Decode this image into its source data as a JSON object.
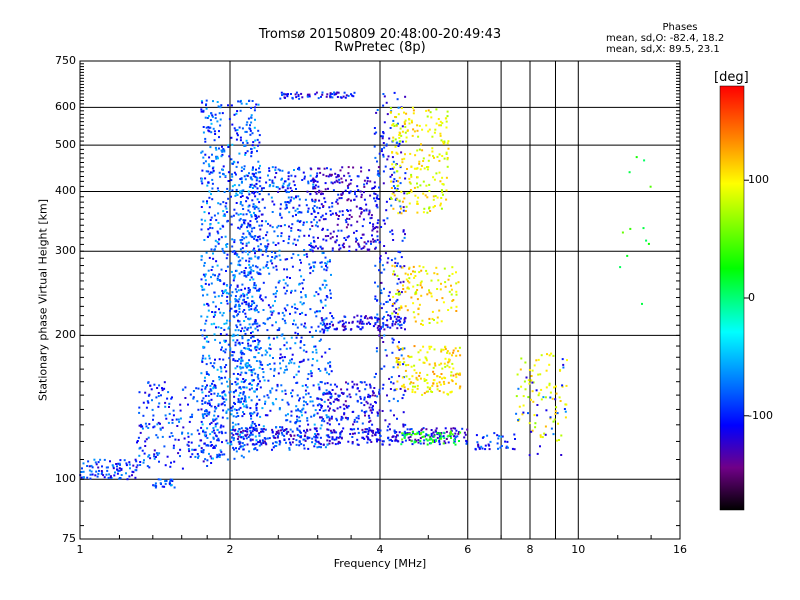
{
  "title_line1": "Tromsø 20150809 20:48:00-20:49:43",
  "title_line2": "RwPretec (8p)",
  "stats": {
    "heading": "Phases",
    "o_line": "mean, sd,O: -82.4, 18.2",
    "x_line": "mean, sd,X: 89.5, 23.1"
  },
  "chart_data": {
    "type": "scatter",
    "xlabel": "Frequency [MHz]",
    "ylabel": "Stationary phase Virtual Height [km]",
    "x_scale": "log",
    "y_scale": "log",
    "xlim": [
      1,
      16
    ],
    "ylim": [
      75,
      750
    ],
    "x_ticks": [
      1,
      2,
      4,
      6,
      8,
      10,
      16
    ],
    "x_tick_labels": [
      "1",
      "2",
      "4",
      "6",
      "8",
      "10",
      "16"
    ],
    "y_ticks": [
      75,
      100,
      200,
      300,
      400,
      500,
      600,
      750
    ],
    "y_tick_labels": [
      "75",
      "100",
      "200",
      "300",
      "400",
      "500",
      "600",
      "750"
    ],
    "grid": true,
    "colorbar": {
      "label": "[deg]",
      "range": [
        -180,
        180
      ],
      "ticks": [
        -100,
        0,
        100
      ],
      "tick_labels": [
        "-100",
        "0",
        "100"
      ]
    },
    "regions": [
      {
        "x_range": [
          1.0,
          1.3
        ],
        "y_range": [
          100,
          110
        ],
        "phase": -90,
        "count": 90
      },
      {
        "x_range": [
          1.3,
          1.9
        ],
        "y_range": [
          105,
          160
        ],
        "phase": -90,
        "count": 220
      },
      {
        "x_range": [
          1.4,
          1.55
        ],
        "y_range": [
          96,
          100
        ],
        "phase": -80,
        "count": 25
      },
      {
        "x_range": [
          1.75,
          2.3
        ],
        "y_range": [
          110,
          620
        ],
        "phase": -75,
        "count": 900
      },
      {
        "x_range": [
          2.0,
          3.2
        ],
        "y_range": [
          115,
          300
        ],
        "phase": -80,
        "count": 700
      },
      {
        "x_range": [
          2.1,
          3.0
        ],
        "y_range": [
          300,
          450
        ],
        "phase": -85,
        "count": 260
      },
      {
        "x_range": [
          2.5,
          3.6
        ],
        "y_range": [
          625,
          645
        ],
        "phase": -100,
        "count": 60
      },
      {
        "x_range": [
          2.0,
          6.0
        ],
        "y_range": [
          118,
          128
        ],
        "phase": -105,
        "count": 330
      },
      {
        "x_range": [
          2.9,
          4.0
        ],
        "y_range": [
          300,
          450
        ],
        "phase": -110,
        "count": 280
      },
      {
        "x_range": [
          3.0,
          4.0
        ],
        "y_range": [
          130,
          160
        ],
        "phase": -105,
        "count": 150
      },
      {
        "x_range": [
          3.0,
          4.5
        ],
        "y_range": [
          205,
          220
        ],
        "phase": -105,
        "count": 110
      },
      {
        "x_range": [
          3.9,
          4.5
        ],
        "y_range": [
          120,
          650
        ],
        "phase": -95,
        "count": 260
      },
      {
        "x_range": [
          4.2,
          5.5
        ],
        "y_range": [
          360,
          600
        ],
        "phase": 95,
        "count": 220
      },
      {
        "x_range": [
          4.3,
          5.8
        ],
        "y_range": [
          150,
          190
        ],
        "phase": 105,
        "count": 160
      },
      {
        "x_range": [
          4.2,
          5.8
        ],
        "y_range": [
          210,
          280
        ],
        "phase": 100,
        "count": 120
      },
      {
        "x_range": [
          4.4,
          5.8
        ],
        "y_range": [
          118,
          126
        ],
        "phase": 20,
        "count": 60
      },
      {
        "x_range": [
          6.2,
          7.5
        ],
        "y_range": [
          115,
          125
        ],
        "phase": -90,
        "count": 40
      },
      {
        "x_range": [
          7.5,
          9.5
        ],
        "y_range": [
          120,
          185
        ],
        "phase": 90,
        "count": 80
      },
      {
        "x_range": [
          7.5,
          9.5
        ],
        "y_range": [
          110,
          180
        ],
        "phase": -90,
        "count": 30
      },
      {
        "x_range": [
          12.0,
          14.0
        ],
        "y_range": [
          230,
          480
        ],
        "phase": 20,
        "count": 12
      }
    ]
  }
}
